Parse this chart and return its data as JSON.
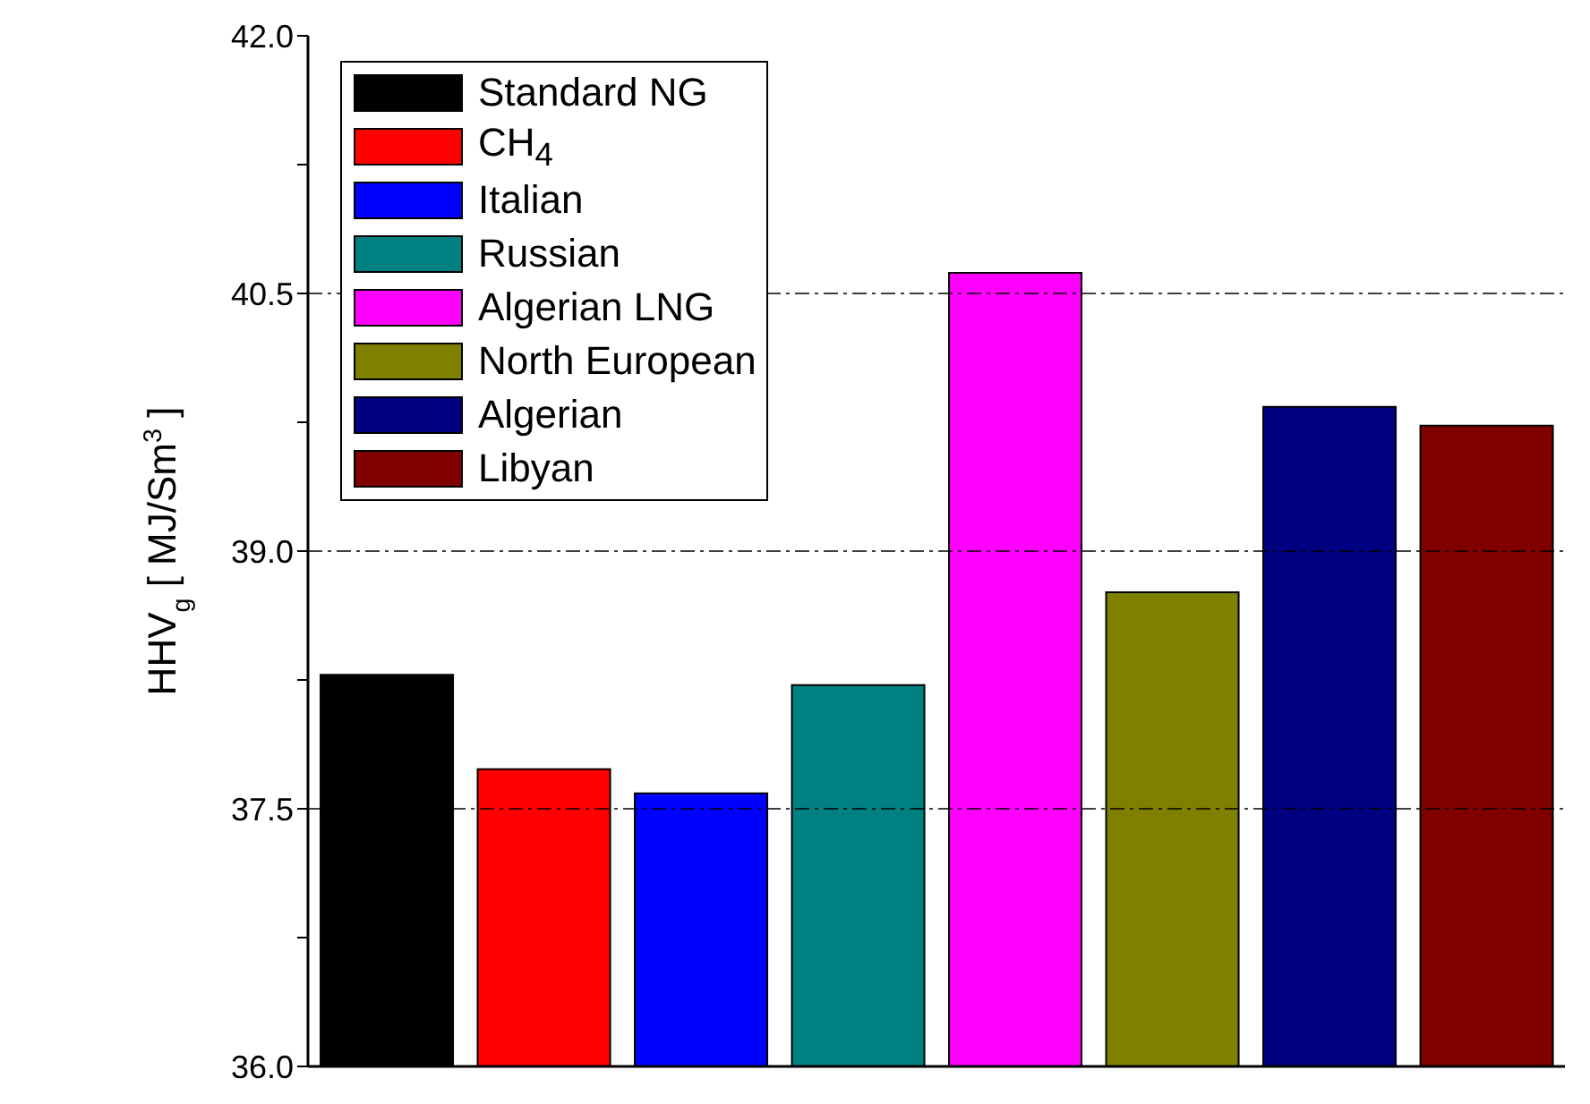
{
  "chart_data": {
    "type": "bar",
    "ylabel": "HHV$_{g}$ [ MJ/Sm$^{3}$ ]",
    "categories": [
      null,
      null,
      null,
      null,
      null,
      null,
      null,
      null
    ],
    "stacked": true,
    "series": [
      {
        "name": "Standard NG",
        "color": "#000000",
        "values": [
          38.28,
          null,
          null,
          null,
          null,
          null,
          null,
          null
        ]
      },
      {
        "name": "CH$_{4}$",
        "color": "#ff0000",
        "values": [
          null,
          37.73,
          null,
          null,
          null,
          null,
          null,
          null
        ]
      },
      {
        "name": "Italian",
        "color": "#0000ff",
        "values": [
          null,
          null,
          37.59,
          null,
          null,
          null,
          null,
          null
        ]
      },
      {
        "name": "Russian",
        "color": "#008080",
        "values": [
          null,
          null,
          null,
          38.22,
          null,
          null,
          null,
          null
        ]
      },
      {
        "name": "Algerian LNG",
        "color": "#ff00ff",
        "values": [
          null,
          null,
          null,
          null,
          40.62,
          null,
          null,
          null
        ]
      },
      {
        "name": "North European",
        "color": "#808000",
        "values": [
          null,
          null,
          null,
          null,
          null,
          38.76,
          null,
          null
        ]
      },
      {
        "name": "Algerian",
        "color": "#000080",
        "values": [
          null,
          null,
          null,
          null,
          null,
          null,
          39.84,
          null
        ]
      },
      {
        "name": "Libyan",
        "color": "#800000",
        "values": [
          null,
          null,
          null,
          null,
          null,
          null,
          null,
          39.73
        ]
      }
    ],
    "ylim": [
      36,
      42
    ],
    "yticks": [
      {
        "value": 36,
        "label": "36.0"
      },
      {
        "value": 36.75,
        "label": null
      },
      {
        "value": 37.5,
        "label": "37.5"
      },
      {
        "value": 38.25,
        "label": null
      },
      {
        "value": 39,
        "label": "39.0"
      },
      {
        "value": 39.75,
        "label": null
      },
      {
        "value": 40.5,
        "label": "40.5"
      },
      {
        "value": 41.25,
        "label": null
      },
      {
        "value": 42,
        "label": "42.0"
      }
    ],
    "grid": "y",
    "legend": "top left",
    "tick_labels": "y"
  }
}
